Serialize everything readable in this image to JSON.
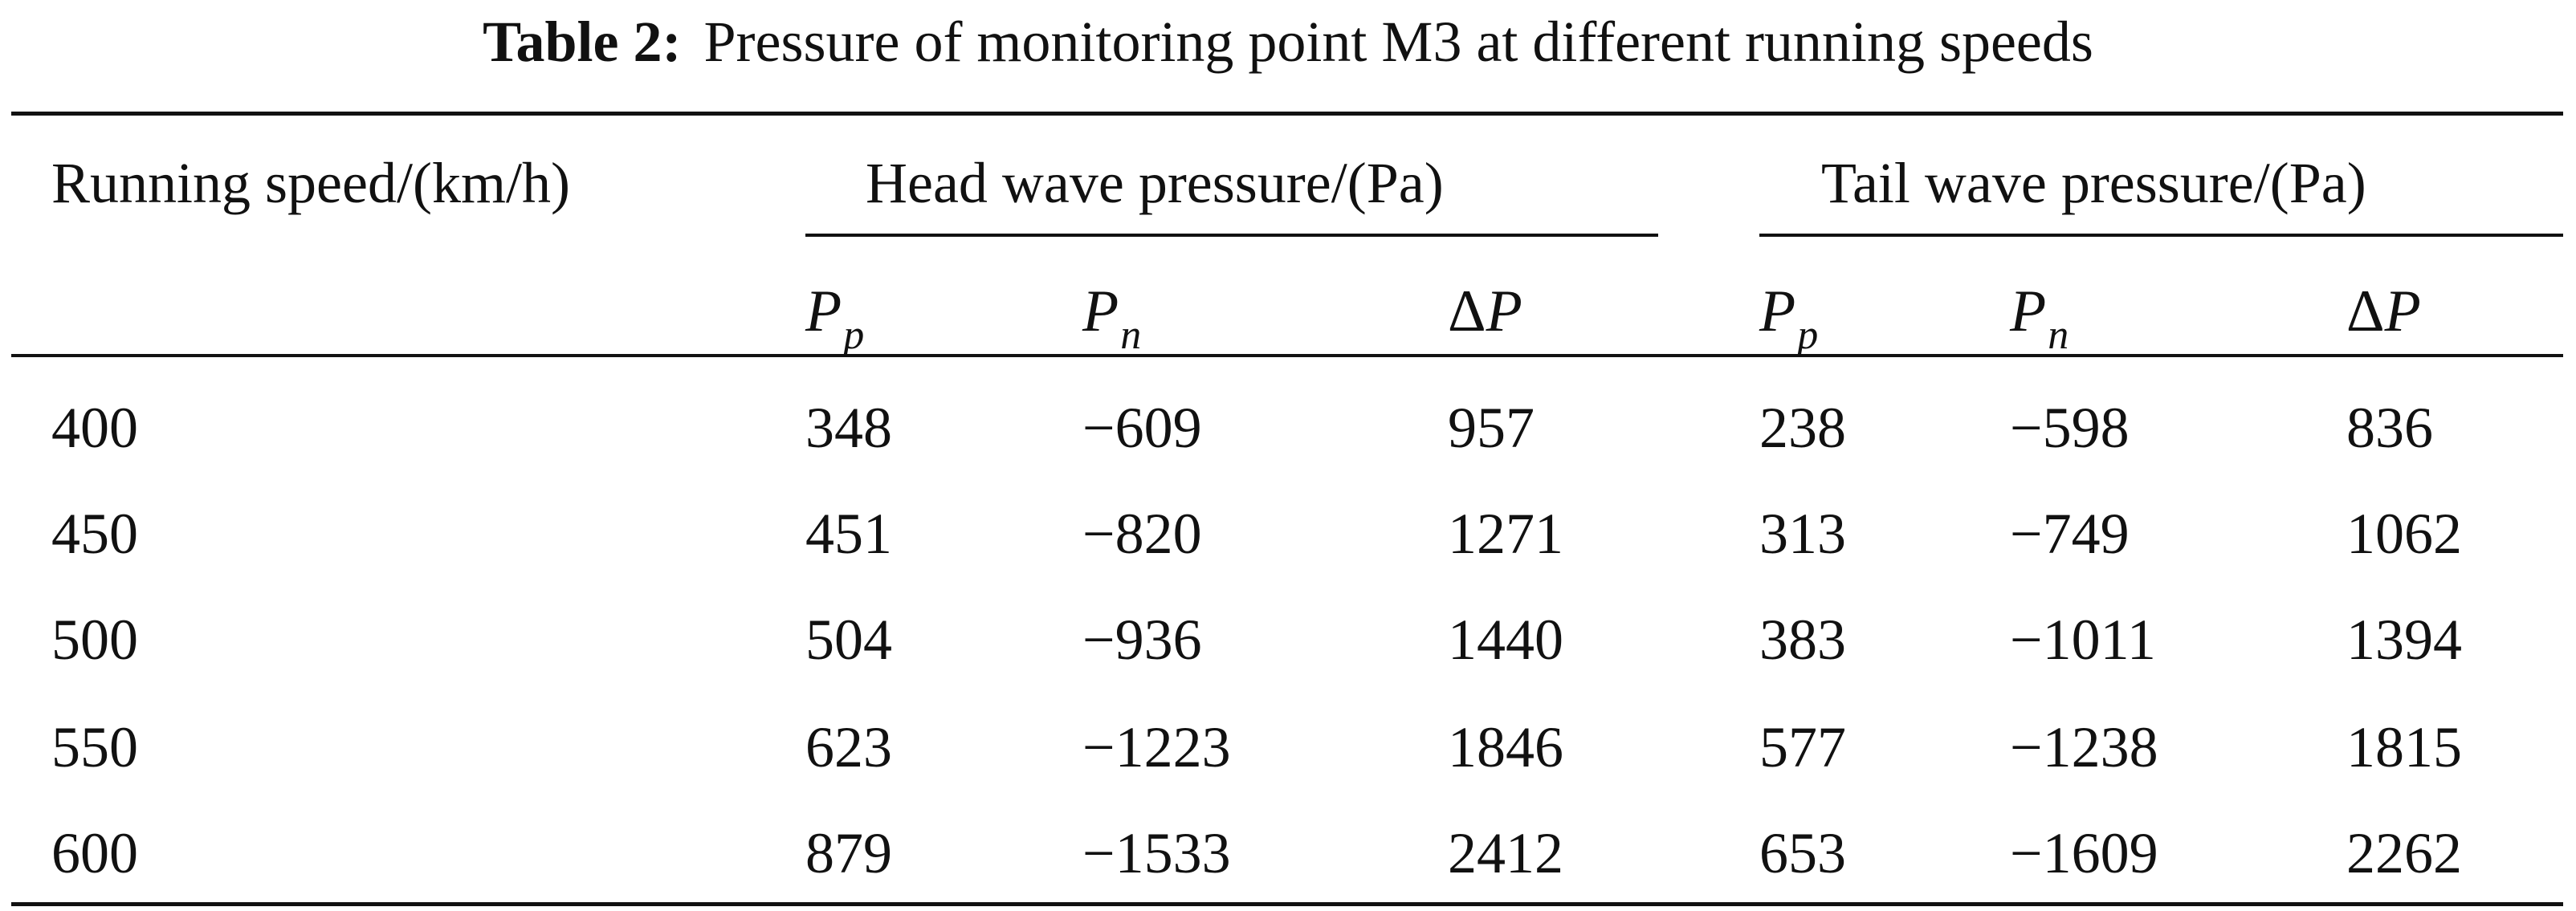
{
  "caption": {
    "label": "Table 2:",
    "text": "Pressure of monitoring point M3 at different running speeds"
  },
  "table": {
    "row_header": "Running speed/(km/h)",
    "group_head": "Head wave pressure/(Pa)",
    "group_tail": "Tail wave pressure/(Pa)",
    "sub_headers": [
      {
        "main": "P",
        "sub": "p"
      },
      {
        "main": "P",
        "sub": "n"
      },
      {
        "delta": "Δ",
        "main": "P"
      },
      {
        "main": "P",
        "sub": "p"
      },
      {
        "main": "P",
        "sub": "n"
      },
      {
        "delta": "Δ",
        "main": "P"
      }
    ],
    "rows": [
      {
        "speed": "400",
        "head_pp": "348",
        "head_pn": "−609",
        "head_dp": "957",
        "tail_pp": "238",
        "tail_pn": "−598",
        "tail_dp": "836"
      },
      {
        "speed": "450",
        "head_pp": "451",
        "head_pn": "−820",
        "head_dp": "1271",
        "tail_pp": "313",
        "tail_pn": "−749",
        "tail_dp": "1062"
      },
      {
        "speed": "500",
        "head_pp": "504",
        "head_pn": "−936",
        "head_dp": "1440",
        "tail_pp": "383",
        "tail_pn": "−1011",
        "tail_dp": "1394"
      },
      {
        "speed": "550",
        "head_pp": "623",
        "head_pn": "−1223",
        "head_dp": "1846",
        "tail_pp": "577",
        "tail_pn": "−1238",
        "tail_dp": "1815"
      },
      {
        "speed": "600",
        "head_pp": "879",
        "head_pn": "−1533",
        "head_dp": "2412",
        "tail_pp": "653",
        "tail_pn": "−1609",
        "tail_dp": "2262"
      }
    ]
  }
}
